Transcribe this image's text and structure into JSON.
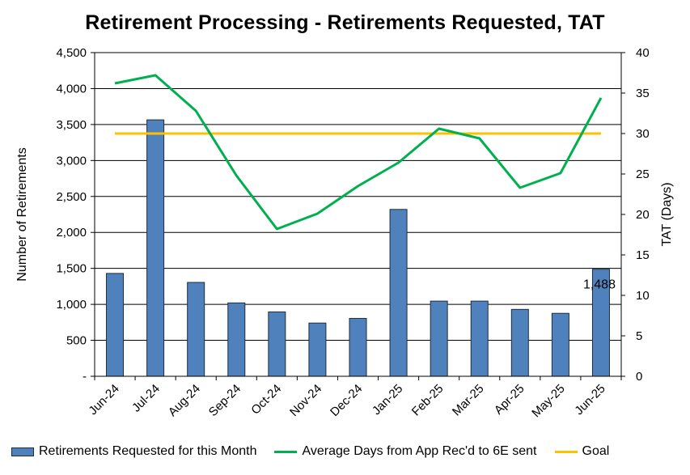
{
  "chart_data": {
    "type": "bar",
    "title": "Retirement Processing - Retirements Requested, TAT",
    "ylabel": "Number of Retirements",
    "y2label": "TAT (Days)",
    "categories": [
      "Jun-24",
      "Jul-24",
      "Aug-24",
      "Sep-24",
      "Oct-24",
      "Nov-24",
      "Dec-24",
      "Jan-25",
      "Feb-25",
      "Mar-25",
      "Apr-25",
      "May-25",
      "Jun-25"
    ],
    "ylim": [
      0,
      4500
    ],
    "y2lim": [
      0,
      40
    ],
    "yticks": [
      "-",
      "500",
      "1,000",
      "1,500",
      "2,000",
      "2,500",
      "3,000",
      "3,500",
      "4,000",
      "4,500"
    ],
    "y2ticks": [
      "0",
      "5",
      "10",
      "15",
      "20",
      "25",
      "30",
      "35",
      "40"
    ],
    "grid": true,
    "legend_position": "bottom",
    "series": [
      {
        "name": "Retirements Requested for this Month",
        "type": "bar",
        "axis": "left",
        "color": "#4f81bd",
        "values": [
          1430,
          3565,
          1305,
          1020,
          895,
          740,
          805,
          2320,
          1045,
          1045,
          930,
          875,
          1488
        ]
      },
      {
        "name": "Average Days from App Rec'd to 6E sent",
        "type": "line",
        "axis": "right",
        "color": "#00b050",
        "values": [
          36.2,
          37.2,
          32.8,
          24.8,
          18.2,
          20.1,
          23.5,
          26.4,
          30.6,
          29.4,
          23.3,
          25.1,
          34.4
        ]
      },
      {
        "name": "Goal",
        "type": "line",
        "axis": "right",
        "color": "#ffc000",
        "values": [
          30,
          30,
          30,
          30,
          30,
          30,
          30,
          30,
          30,
          30,
          30,
          30,
          30
        ]
      }
    ],
    "annotations": [
      {
        "category": "Jun-25",
        "series": "Retirements Requested for this Month",
        "text": "1,488"
      }
    ]
  }
}
